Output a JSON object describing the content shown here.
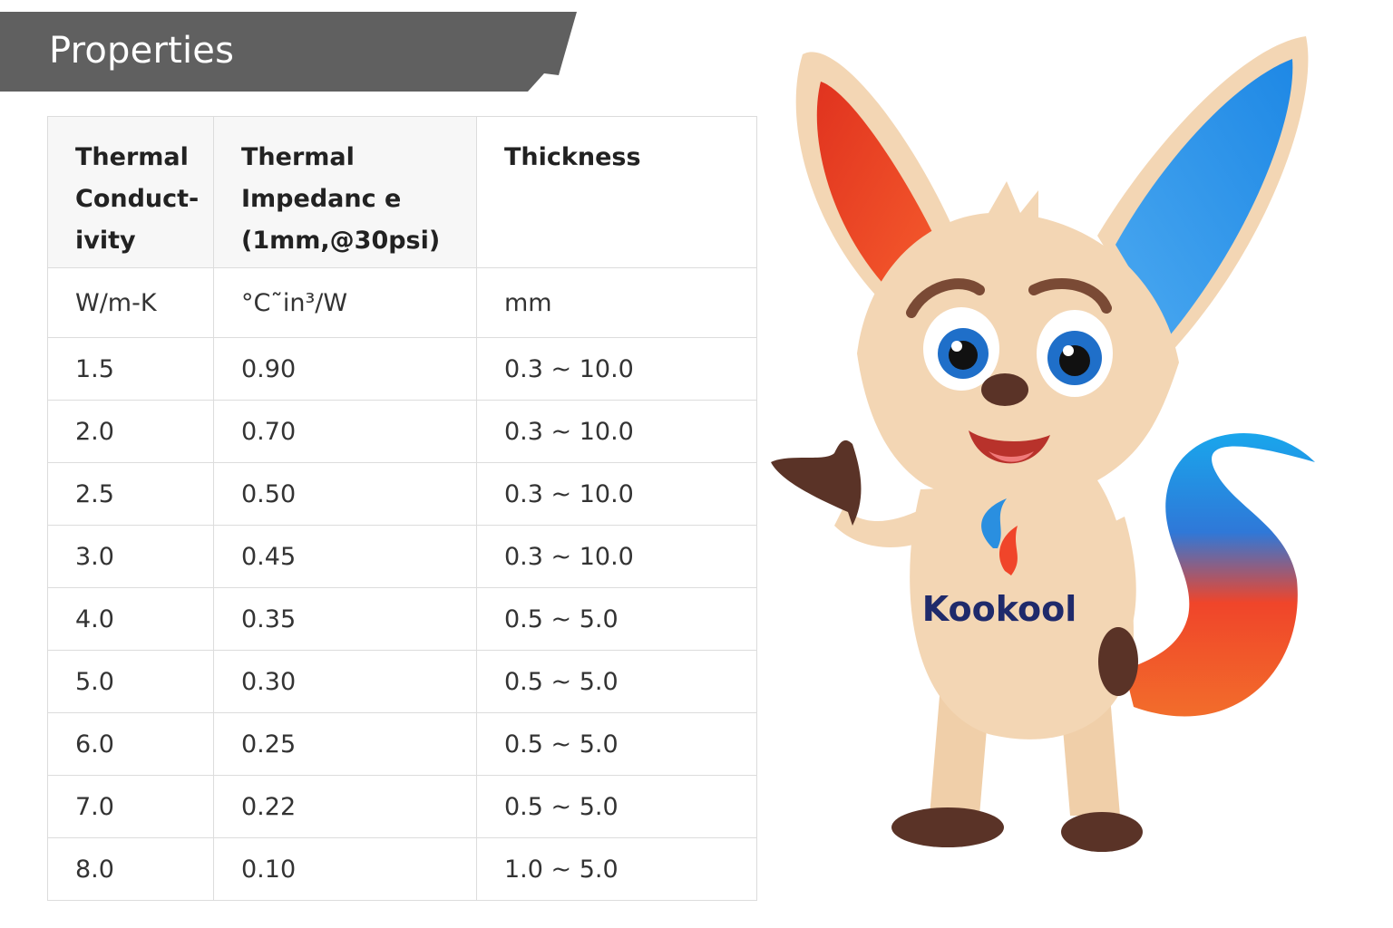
{
  "section": {
    "title": "Properties"
  },
  "table": {
    "headers": {
      "conductivity": [
        "Thermal",
        "Conduct-",
        "ivity"
      ],
      "impedance": [
        "Thermal",
        "Impedanc e",
        "(1mm,@30psi)"
      ],
      "thickness": [
        "Thickness"
      ]
    },
    "units": {
      "conductivity": "W/m-K",
      "impedance": "°C˜in³/W",
      "thickness": "mm"
    },
    "rows": [
      {
        "conductivity": "1.5",
        "impedance": "0.90",
        "thickness": "0.3 ~ 10.0"
      },
      {
        "conductivity": "2.0",
        "impedance": "0.70",
        "thickness": "0.3 ~ 10.0"
      },
      {
        "conductivity": "2.5",
        "impedance": "0.50",
        "thickness": "0.3 ~ 10.0"
      },
      {
        "conductivity": "3.0",
        "impedance": "0.45",
        "thickness": "0.3 ~ 10.0"
      },
      {
        "conductivity": "4.0",
        "impedance": "0.35",
        "thickness": "0.5 ~ 5.0"
      },
      {
        "conductivity": "5.0",
        "impedance": "0.30",
        "thickness": "0.5 ~ 5.0"
      },
      {
        "conductivity": "6.0",
        "impedance": "0.25",
        "thickness": "0.5 ~ 5.0"
      },
      {
        "conductivity": "7.0",
        "impedance": "0.22",
        "thickness": "0.5 ~ 5.0"
      },
      {
        "conductivity": "8.0",
        "impedance": "0.10",
        "thickness": "1.0 ~ 5.0"
      }
    ]
  },
  "mascot": {
    "logo_text": "Kookool"
  },
  "colors": {
    "banner": "#606060",
    "fur": "#f3d6b4",
    "accent_red": "#f0452a",
    "accent_blue": "#2a8fe0",
    "logo_navy": "#1f2a6b"
  }
}
